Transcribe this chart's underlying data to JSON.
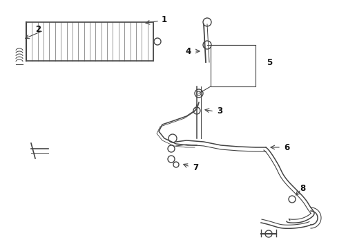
{
  "background_color": "#ffffff",
  "fig_width": 4.89,
  "fig_height": 3.6,
  "dpi": 100,
  "line_color": "#444444",
  "line_width": 1.0,
  "label_color": "#111111",
  "label_fontsize": 8.5
}
